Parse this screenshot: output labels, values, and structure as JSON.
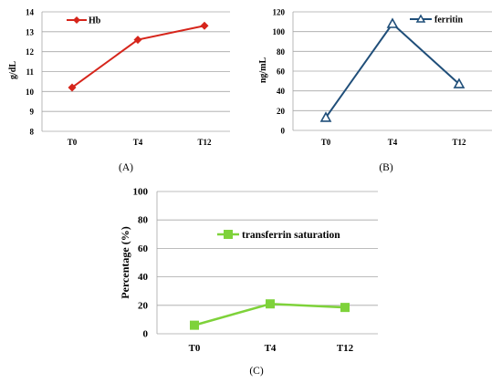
{
  "colors": {
    "hb": "#d6251b",
    "ferritin": "#1f4e79",
    "tsat": "#7ed23a"
  },
  "chart_data": [
    {
      "type": "line",
      "panel_label": "(A)",
      "ylabel": "g/dL",
      "xlabel": "",
      "categories": [
        "T0",
        "T4",
        "T12"
      ],
      "ylim": [
        8,
        14
      ],
      "yticks": [
        8,
        9,
        10,
        11,
        12,
        13,
        14
      ],
      "grid": true,
      "legend_position": "top-left",
      "series": [
        {
          "name": "Hb",
          "marker": "diamond",
          "values": [
            10.2,
            12.6,
            13.3
          ]
        }
      ]
    },
    {
      "type": "line",
      "panel_label": "(B)",
      "ylabel": "ng/mL",
      "xlabel": "",
      "categories": [
        "T0",
        "T4",
        "T12"
      ],
      "ylim": [
        0,
        120
      ],
      "yticks": [
        0,
        20,
        40,
        60,
        80,
        100,
        120
      ],
      "grid": true,
      "legend_position": "top-right",
      "series": [
        {
          "name": "ferritin",
          "marker": "triangle-open",
          "values": [
            13,
            108,
            47
          ]
        }
      ]
    },
    {
      "type": "line",
      "panel_label": "(C)",
      "ylabel": "Percentage (%)",
      "xlabel": "",
      "categories": [
        "T0",
        "T4",
        "T12"
      ],
      "ylim": [
        0,
        100
      ],
      "yticks": [
        0,
        20,
        40,
        60,
        80,
        100
      ],
      "grid": true,
      "legend_position": "top-right",
      "series": [
        {
          "name": "transferrin saturation",
          "marker": "square",
          "values": [
            6,
            21,
            18.5
          ]
        }
      ]
    }
  ]
}
